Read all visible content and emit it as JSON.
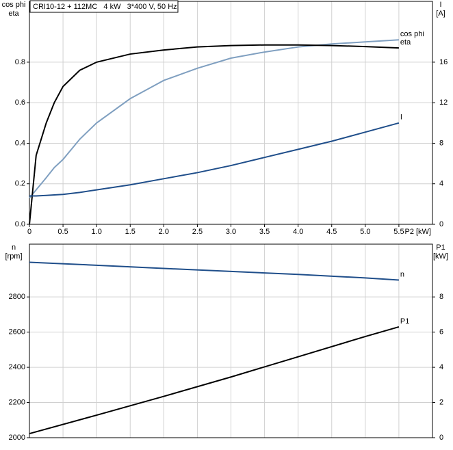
{
  "chart_data": [
    {
      "type": "line",
      "title": "CRI10-12 + 112MC   4 kW   3*400 V, 50 Hz",
      "ylabel": [
        "cos phi",
        "eta"
      ],
      "y2label": [
        "I",
        "[A]"
      ],
      "xlabel": "P2 [kW]",
      "x": [
        0,
        0.1,
        0.25,
        0.37,
        0.5,
        0.75,
        1.0,
        1.5,
        2.0,
        2.5,
        3.0,
        3.5,
        4.0,
        4.5,
        5.0,
        5.5
      ],
      "series": [
        {
          "name": "cos phi",
          "color": "#7f9fc0",
          "values": [
            0.13,
            0.17,
            0.23,
            0.28,
            0.32,
            0.42,
            0.5,
            0.62,
            0.71,
            0.77,
            0.82,
            0.85,
            0.875,
            0.89,
            0.9,
            0.91
          ]
        },
        {
          "name": "eta",
          "color": "#000000",
          "values": [
            0,
            0.34,
            0.5,
            0.6,
            0.68,
            0.76,
            0.8,
            0.84,
            0.86,
            0.875,
            0.882,
            0.885,
            0.885,
            0.882,
            0.877,
            0.87
          ]
        },
        {
          "name": "I",
          "color": "#1f4e8a",
          "axis": "y2",
          "values": [
            2.8,
            2.8,
            2.85,
            2.9,
            2.95,
            3.15,
            3.4,
            3.9,
            4.5,
            5.1,
            5.8,
            6.6,
            7.4,
            8.2,
            9.1,
            10.0
          ]
        }
      ],
      "xlim": [
        0,
        6
      ],
      "xticks": [
        0,
        0.5,
        {
          "value": 1,
          "label": "1.0"
        },
        1.5,
        {
          "value": 2,
          "label": "2.0"
        },
        2.5,
        {
          "value": 3,
          "label": "3.0"
        },
        3.5,
        {
          "value": 4,
          "label": "4.0"
        },
        4.5,
        {
          "value": 5,
          "label": "5.0"
        },
        5.5
      ],
      "ylim": [
        0,
        1.1
      ],
      "yticks": [
        {
          "value": 0,
          "label": "0.0"
        },
        0.2,
        0.4,
        0.6,
        0.8
      ],
      "y2lim": [
        0,
        22
      ],
      "y2ticks": [
        0,
        4,
        8,
        12,
        16
      ],
      "grid": true
    },
    {
      "type": "line",
      "ylabel": [
        "n",
        "[rpm]"
      ],
      "y2label": [
        "P1",
        "[kW]"
      ],
      "x": [
        0,
        1,
        2,
        3,
        4,
        5,
        5.5
      ],
      "series": [
        {
          "name": "n",
          "color": "#1f4e8a",
          "values": [
            2997,
            2980,
            2962,
            2945,
            2928,
            2908,
            2896
          ]
        },
        {
          "name": "P1",
          "color": "#000000",
          "axis": "y2",
          "values": [
            0.23,
            1.28,
            2.35,
            3.45,
            4.6,
            5.75,
            6.3
          ]
        }
      ],
      "xlim": [
        0,
        6
      ],
      "xticks": [
        0,
        0.5,
        1,
        1.5,
        2,
        2.5,
        3,
        3.5,
        4,
        4.5,
        5,
        5.5
      ],
      "xtick_labels": false,
      "ylim": [
        2000,
        3100
      ],
      "yticks": [
        2000,
        2200,
        2400,
        2600,
        2800
      ],
      "y2lim": [
        0,
        11
      ],
      "y2ticks": [
        0,
        2,
        4,
        6,
        8
      ],
      "grid": true
    }
  ]
}
